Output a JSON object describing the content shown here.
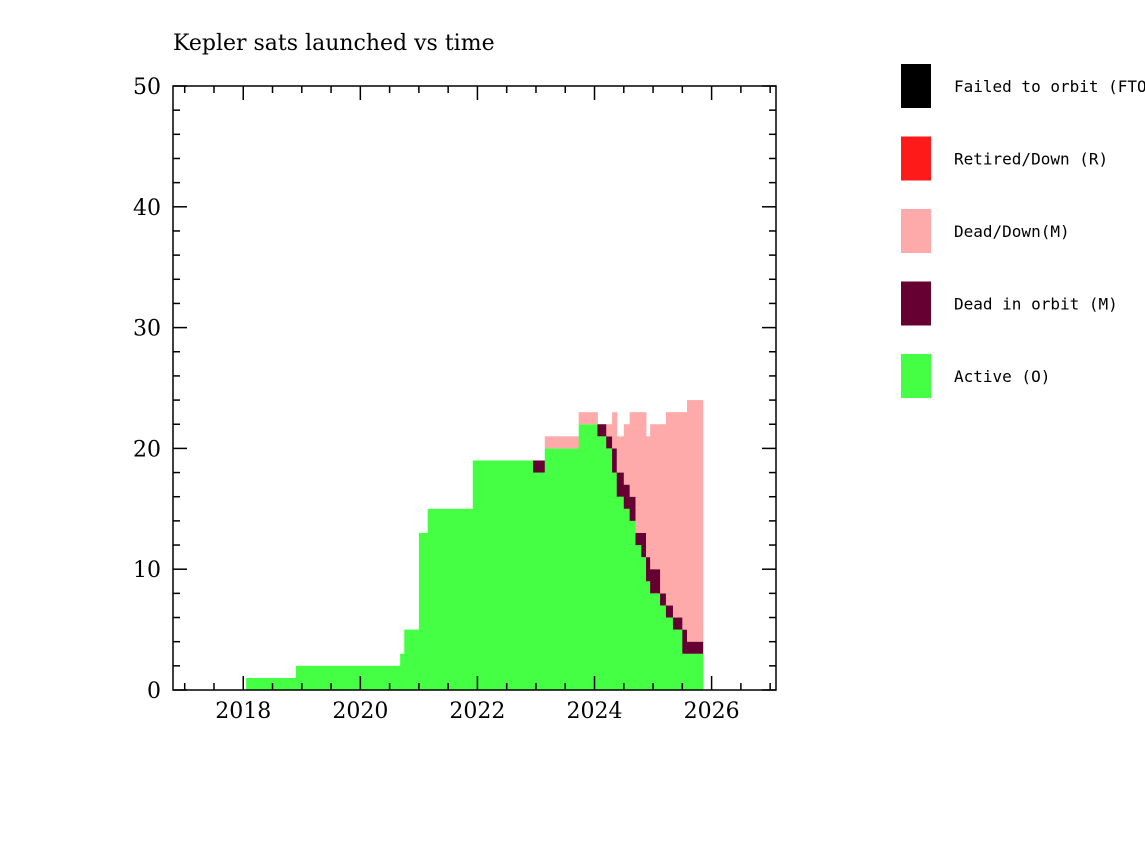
{
  "chart_data": {
    "type": "area",
    "title": "Kepler sats launched vs time",
    "xlabel": "",
    "ylabel": "",
    "xlim": [
      2016.8,
      2027.1
    ],
    "ylim": [
      0,
      50
    ],
    "xticks": [
      "2018",
      "2020",
      "2022",
      "2024",
      "2026"
    ],
    "yticks": [
      "0",
      "10",
      "20",
      "30",
      "40",
      "50"
    ],
    "legend_position": "right",
    "grid": false,
    "stacked_series_order": [
      "Active (O)",
      "Dead in orbit (M)",
      "Dead/Down(M)",
      "Retired/Down (R)",
      "Failed to orbit (FTO)"
    ],
    "series": [
      {
        "name": "Failed to orbit (FTO)",
        "color": "#000000"
      },
      {
        "name": "Retired/Down (R)",
        "color": "#ff1a1a"
      },
      {
        "name": "Dead/Down(M)",
        "color": "#ffaaaa"
      },
      {
        "name": "Dead in orbit (M)",
        "color": "#660033"
      },
      {
        "name": "Active (O)",
        "color": "#44ff44"
      }
    ],
    "step_series": {
      "Active (O)": [
        [
          2018.05,
          1
        ],
        [
          2018.9,
          2
        ],
        [
          2020.68,
          3
        ],
        [
          2020.75,
          5
        ],
        [
          2021.0,
          13
        ],
        [
          2021.15,
          15
        ],
        [
          2021.92,
          19
        ],
        [
          2022.95,
          18
        ],
        [
          2023.15,
          20
        ],
        [
          2023.73,
          22
        ],
        [
          2024.05,
          21
        ],
        [
          2024.2,
          20
        ],
        [
          2024.3,
          18
        ],
        [
          2024.38,
          16
        ],
        [
          2024.5,
          15
        ],
        [
          2024.6,
          14
        ],
        [
          2024.7,
          12
        ],
        [
          2024.8,
          11
        ],
        [
          2024.88,
          9
        ],
        [
          2024.95,
          8
        ],
        [
          2025.0,
          8
        ],
        [
          2025.12,
          7
        ],
        [
          2025.22,
          6
        ],
        [
          2025.34,
          5
        ],
        [
          2025.5,
          3
        ],
        [
          2025.85,
          null
        ]
      ],
      "Dead in orbit (M)": [
        [
          2022.95,
          1
        ],
        [
          2023.15,
          0
        ],
        [
          2024.05,
          1
        ],
        [
          2024.2,
          1
        ],
        [
          2024.3,
          2
        ],
        [
          2024.5,
          2
        ],
        [
          2024.7,
          1
        ],
        [
          2024.8,
          2
        ],
        [
          2024.95,
          2
        ],
        [
          2025.12,
          1
        ],
        [
          2025.22,
          1
        ],
        [
          2025.34,
          1
        ],
        [
          2025.5,
          2
        ],
        [
          2025.58,
          1
        ],
        [
          2025.85,
          null
        ]
      ],
      "Dead/Down(M)": [
        [
          2023.15,
          1
        ],
        [
          2023.73,
          1
        ],
        [
          2024.05,
          0
        ],
        [
          2024.2,
          1
        ],
        [
          2024.3,
          3
        ],
        [
          2024.5,
          5
        ],
        [
          2024.6,
          7
        ],
        [
          2024.7,
          10
        ],
        [
          2024.8,
          10
        ],
        [
          2024.95,
          12
        ],
        [
          2025.12,
          14
        ],
        [
          2025.22,
          16
        ],
        [
          2025.34,
          17
        ],
        [
          2025.5,
          18
        ],
        [
          2025.58,
          20
        ],
        [
          2025.85,
          null
        ]
      ]
    }
  }
}
